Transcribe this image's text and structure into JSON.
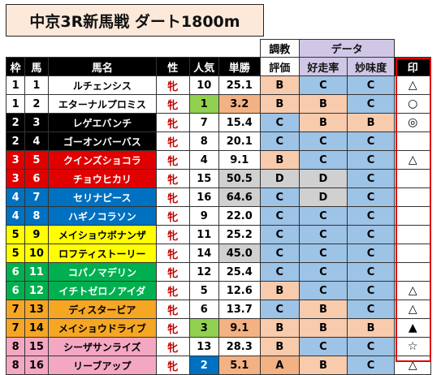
{
  "title": "中京3R新馬戦  ダート1800m",
  "headers": {
    "waku": "枠",
    "uma": "馬",
    "bamei": "馬名",
    "sex": "性",
    "pop": "人気",
    "odds": "単勝",
    "chokyo_top": "調教",
    "chokyo": "評価",
    "data_top": "データ",
    "kousou": "好走率",
    "myomi": "妙味度",
    "mark": "印"
  },
  "rows": [
    {
      "waku": "1",
      "uma": "1",
      "name": "ルチェンシス",
      "sex": "牝",
      "pop": "10",
      "odds": "25.1",
      "eval": "B",
      "kousou": "C",
      "myomi": "C",
      "mark": "△"
    },
    {
      "waku": "1",
      "uma": "2",
      "name": "エターナルプロミス",
      "sex": "牝",
      "pop": "1",
      "odds": "3.2",
      "eval": "B",
      "kousou": "B",
      "myomi": "C",
      "mark": "○"
    },
    {
      "waku": "2",
      "uma": "3",
      "name": "レゲエバンチ",
      "sex": "牝",
      "pop": "7",
      "odds": "15.4",
      "eval": "C",
      "kousou": "B",
      "myomi": "B",
      "mark": "◎"
    },
    {
      "waku": "2",
      "uma": "4",
      "name": "ゴーオンバーバス",
      "sex": "牝",
      "pop": "8",
      "odds": "20.1",
      "eval": "C",
      "kousou": "C",
      "myomi": "C",
      "mark": ""
    },
    {
      "waku": "3",
      "uma": "5",
      "name": "クインズショコラ",
      "sex": "牝",
      "pop": "4",
      "odds": "9.1",
      "eval": "B",
      "kousou": "C",
      "myomi": "C",
      "mark": "△"
    },
    {
      "waku": "3",
      "uma": "6",
      "name": "チョウヒカリ",
      "sex": "牝",
      "pop": "15",
      "odds": "50.5",
      "eval": "D",
      "kousou": "D",
      "myomi": "C",
      "mark": ""
    },
    {
      "waku": "4",
      "uma": "7",
      "name": "セリナピース",
      "sex": "牝",
      "pop": "16",
      "odds": "64.6",
      "eval": "C",
      "kousou": "D",
      "myomi": "C",
      "mark": ""
    },
    {
      "waku": "4",
      "uma": "8",
      "name": "ハギノコラソン",
      "sex": "牝",
      "pop": "9",
      "odds": "22.0",
      "eval": "C",
      "kousou": "C",
      "myomi": "C",
      "mark": ""
    },
    {
      "waku": "5",
      "uma": "9",
      "name": "メイショウボナンザ",
      "sex": "牝",
      "pop": "11",
      "odds": "25.2",
      "eval": "C",
      "kousou": "C",
      "myomi": "C",
      "mark": ""
    },
    {
      "waku": "5",
      "uma": "10",
      "name": "ロフティストーリー",
      "sex": "牝",
      "pop": "14",
      "odds": "45.0",
      "eval": "C",
      "kousou": "C",
      "myomi": "C",
      "mark": ""
    },
    {
      "waku": "6",
      "uma": "11",
      "name": "コパノマデリン",
      "sex": "牝",
      "pop": "12",
      "odds": "25.4",
      "eval": "C",
      "kousou": "C",
      "myomi": "C",
      "mark": ""
    },
    {
      "waku": "6",
      "uma": "12",
      "name": "イチトゼロノアイダ",
      "sex": "牝",
      "pop": "5",
      "odds": "12.6",
      "eval": "B",
      "kousou": "C",
      "myomi": "C",
      "mark": "△"
    },
    {
      "waku": "7",
      "uma": "13",
      "name": "ディスタービア",
      "sex": "牝",
      "pop": "6",
      "odds": "13.7",
      "eval": "C",
      "kousou": "B",
      "myomi": "C",
      "mark": "△"
    },
    {
      "waku": "7",
      "uma": "14",
      "name": "メイショウドライブ",
      "sex": "牝",
      "pop": "3",
      "odds": "9.1",
      "eval": "B",
      "kousou": "B",
      "myomi": "B",
      "mark": "▲"
    },
    {
      "waku": "8",
      "uma": "15",
      "name": "シーザサンライズ",
      "sex": "牝",
      "pop": "13",
      "odds": "28.3",
      "eval": "B",
      "kousou": "C",
      "myomi": "C",
      "mark": "☆"
    },
    {
      "waku": "8",
      "uma": "16",
      "name": "リーブアップ",
      "sex": "牝",
      "pop": "2",
      "odds": "5.1",
      "eval": "A",
      "kousou": "B",
      "myomi": "C",
      "mark": "△"
    }
  ],
  "waku_colors": {
    "1": {
      "bg": "#ffffff",
      "fg": "#000000"
    },
    "2": {
      "bg": "#000000",
      "fg": "#ffffff"
    },
    "3": {
      "bg": "#e00000",
      "fg": "#ffffff"
    },
    "4": {
      "bg": "#0070c0",
      "fg": "#ffffff"
    },
    "5": {
      "bg": "#ffff00",
      "fg": "#000000"
    },
    "6": {
      "bg": "#00b050",
      "fg": "#ffffff"
    },
    "7": {
      "bg": "#f5a623",
      "fg": "#000000"
    },
    "8": {
      "bg": "#f4a7c3",
      "fg": "#000000"
    }
  }
}
